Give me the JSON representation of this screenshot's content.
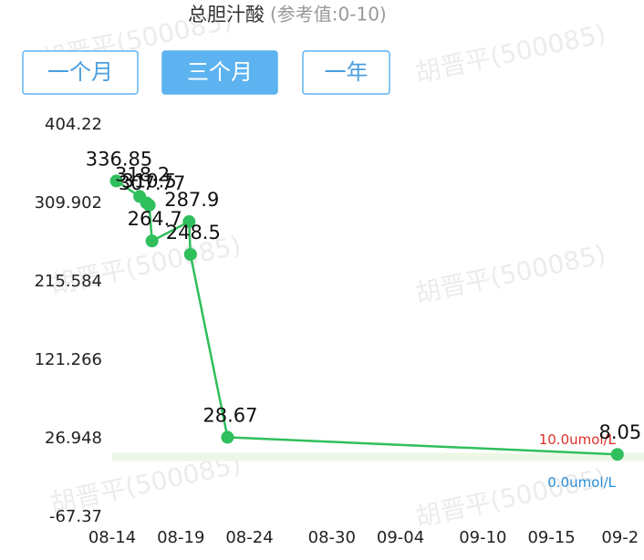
{
  "watermark": "胡晋平(500085)",
  "buttons": [
    "一个月",
    "三个月",
    "一年"
  ],
  "active_button": 1,
  "chart_data": {
    "type": "line",
    "title": "总胆汁酸",
    "subtitle": "(参考值:0-10)",
    "x": [
      0.3,
      2,
      2.5,
      2.7,
      2.9,
      5.6,
      5.7,
      8.4,
      36.8
    ],
    "series": [
      {
        "name": "总胆汁酸",
        "color": "#2fbf5c",
        "values": [
          336.85,
          318.2,
          310.5,
          307.77,
          264.7,
          287.9,
          248.5,
          28.67,
          8.05
        ]
      }
    ],
    "xlim": [
      0,
      37.5
    ],
    "xticks": [
      {
        "value": 0,
        "label": "08-14"
      },
      {
        "value": 5,
        "label": "08-19"
      },
      {
        "value": 10,
        "label": "08-24"
      },
      {
        "value": 16,
        "label": "08-30"
      },
      {
        "value": 21,
        "label": "09-04"
      },
      {
        "value": 27,
        "label": "09-10"
      },
      {
        "value": 32,
        "label": "09-15"
      },
      {
        "value": 37,
        "label": "09-2"
      }
    ],
    "ylim": [
      -67.37,
      404.22
    ],
    "yticks": [
      -67.37,
      26.948,
      121.266,
      215.584,
      309.902,
      404.22
    ],
    "reference_band": {
      "color": "#eef7e6",
      "upper": {
        "value": 10,
        "label": "10.0umol/L",
        "color": "#e0302a"
      },
      "lower": {
        "value": 0,
        "label": "0.0umol/L",
        "color": "#2a8fd8"
      }
    }
  }
}
